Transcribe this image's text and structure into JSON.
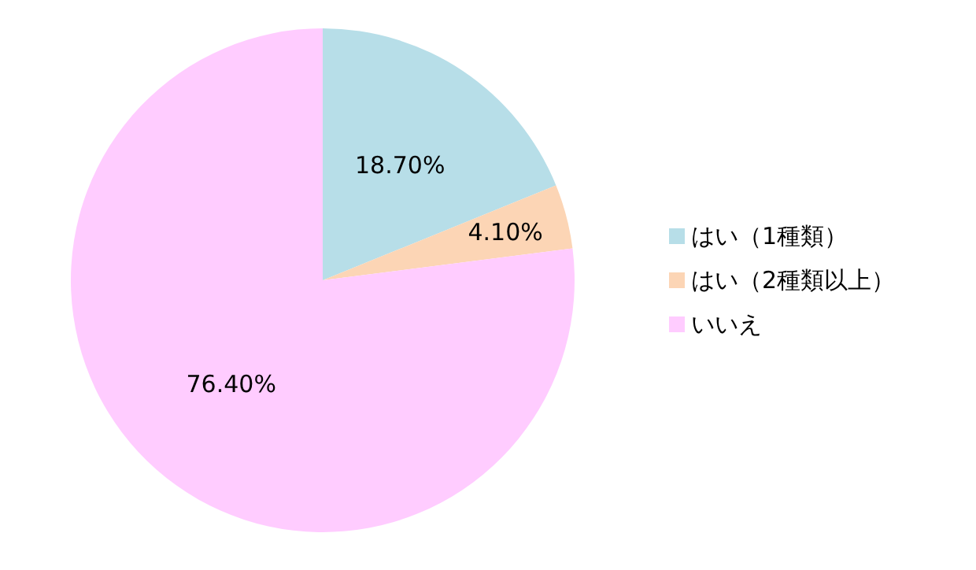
{
  "chart_data": {
    "type": "pie",
    "categories": [
      "はい（1種類）",
      "はい（2種類以上）",
      "いいえ"
    ],
    "values": [
      18.7,
      4.1,
      76.4
    ],
    "colors": [
      "#b7dee8",
      "#fcd5b5",
      "#ffccff"
    ],
    "value_labels": [
      "18.70%",
      "4.10%",
      "76.40%"
    ],
    "legend": "right"
  }
}
